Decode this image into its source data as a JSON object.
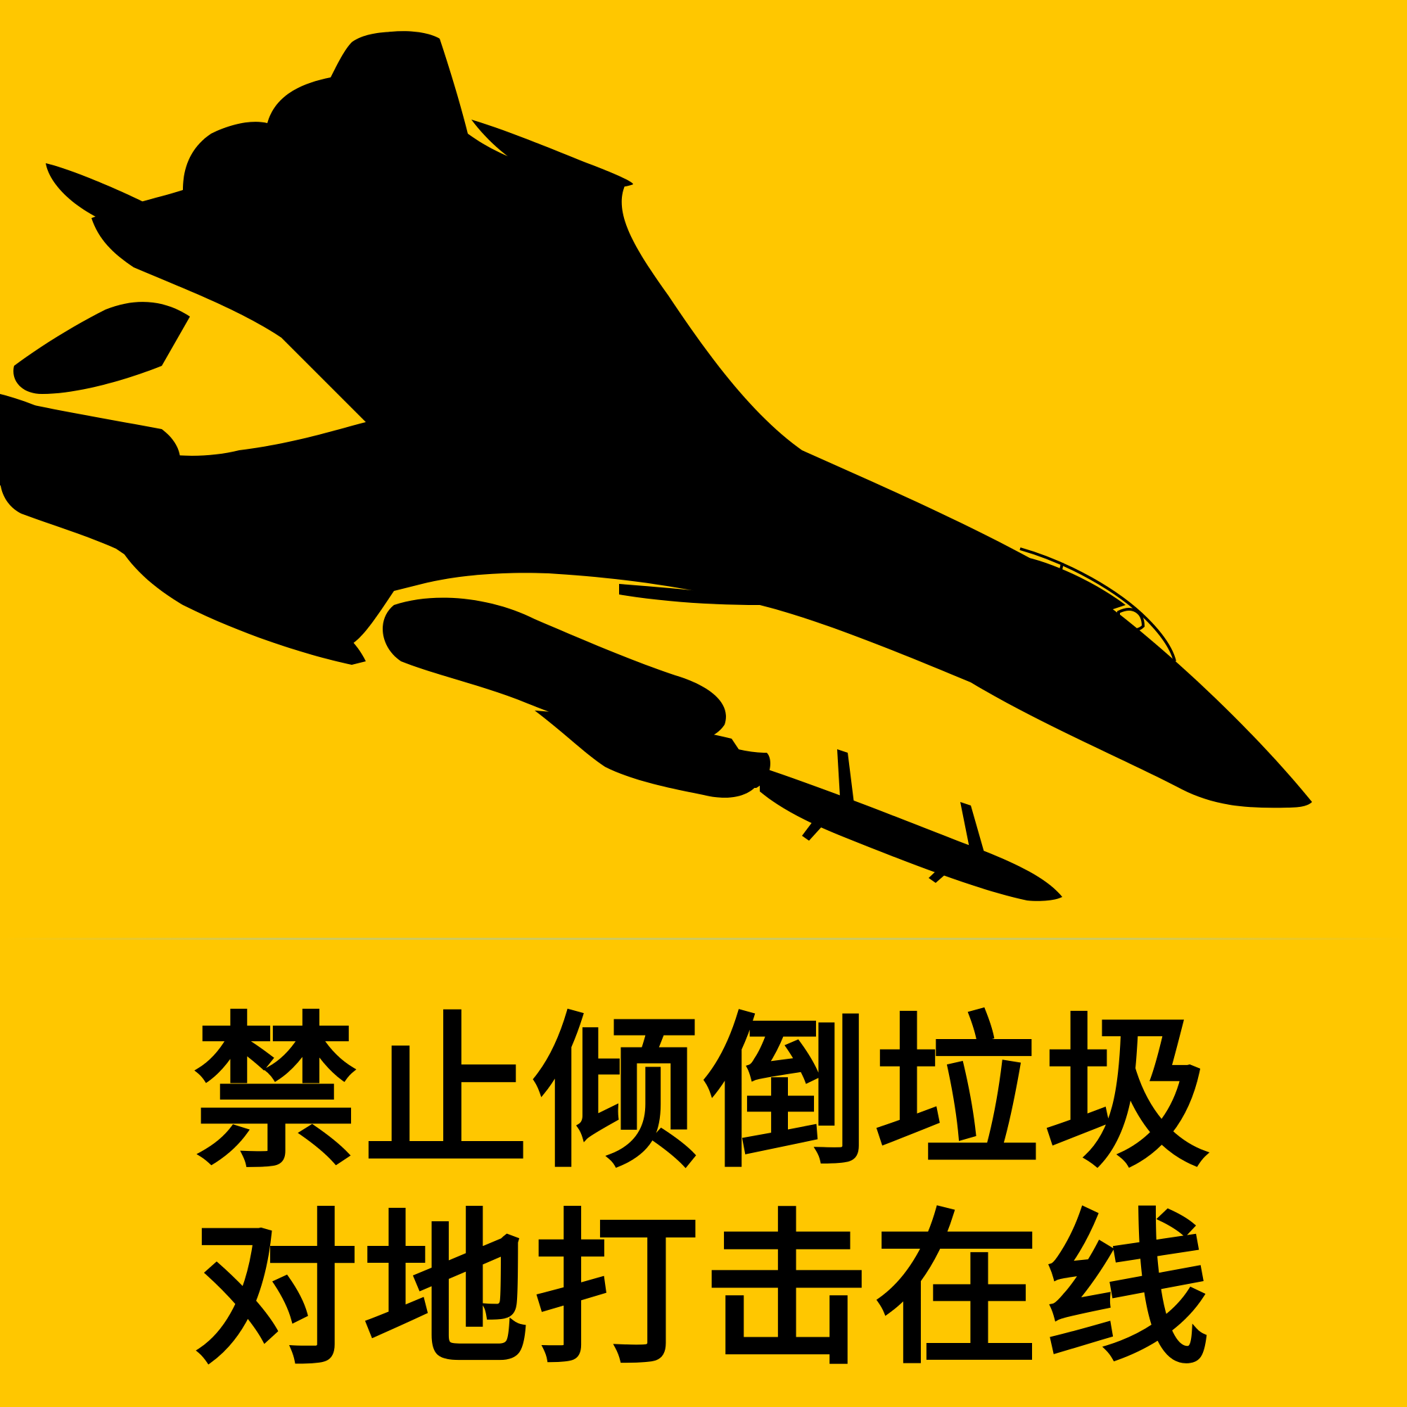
{
  "sign": {
    "background_color": "#FFC700",
    "silhouette_color": "#000000",
    "text_color": "#000000",
    "icon": "jet-fighter-silhouette-icon",
    "line1": "禁止倾倒垃圾",
    "line2": "对地打击在线"
  }
}
